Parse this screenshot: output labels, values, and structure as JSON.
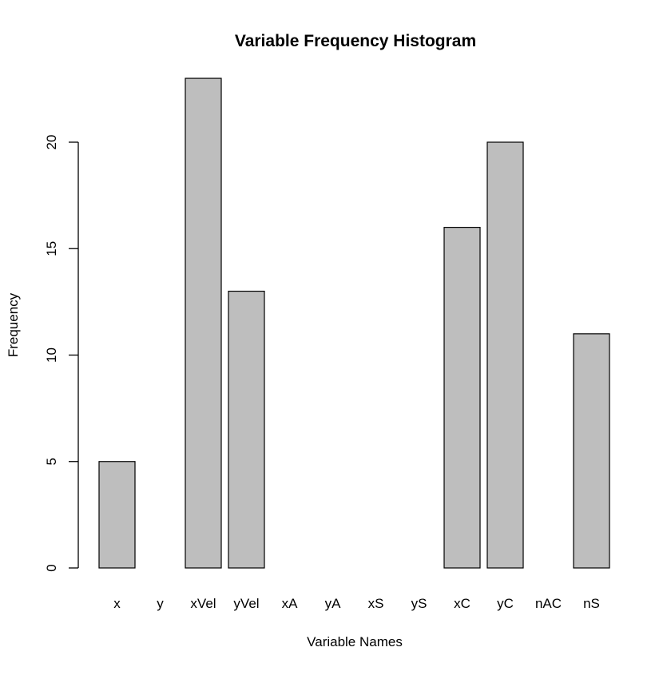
{
  "chart_data": {
    "type": "bar",
    "title": "Variable Frequency Histogram",
    "xlabel": "Variable Names",
    "ylabel": "Frequency",
    "categories": [
      "x",
      "y",
      "xVel",
      "yVel",
      "xA",
      "yA",
      "xS",
      "yS",
      "xC",
      "yC",
      "nAC",
      "nS"
    ],
    "values": [
      5,
      0,
      23,
      13,
      0,
      0,
      0,
      0,
      16,
      20,
      0,
      11
    ],
    "yticks": [
      0,
      5,
      10,
      15,
      20
    ],
    "ylim": [
      0,
      23
    ],
    "bar_color": "#bebebe",
    "edge_color": "#000000",
    "grid": false,
    "legend": "none"
  }
}
